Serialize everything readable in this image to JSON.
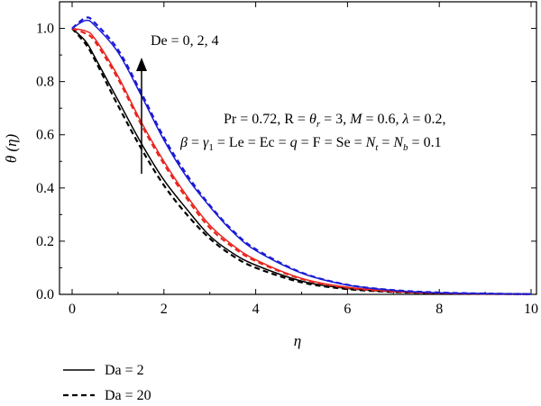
{
  "chart_data": {
    "type": "line",
    "xlabel": "η",
    "ylabel": "θ (η)",
    "xlim": [
      0,
      10
    ],
    "ylim": [
      0,
      1.1
    ],
    "xticks": [
      0,
      2,
      4,
      6,
      8,
      10
    ],
    "yticks": [
      0.0,
      0.2,
      0.4,
      0.6,
      0.8,
      1.0
    ],
    "xtick_labels": [
      "0",
      "2",
      "4",
      "6",
      "8",
      "10"
    ],
    "ytick_labels": [
      "0.0",
      "0.2",
      "0.4",
      "0.6",
      "0.8",
      "1.0"
    ],
    "grid": false,
    "colors": {
      "De0": "#000000",
      "De2": "#e8261f",
      "De4": "#1a1ad6"
    },
    "annotations": {
      "arrow_label": "De = 0, 2, 4",
      "params_line1": "Pr = 0.72, R = θr = 3, M = 0.6, λ = 0.2,",
      "params_line2": "β = γ1 = Le = Ec = q = F = Se = Nt = Nb = 0.1"
    },
    "legend": [
      {
        "label": "Da = 2",
        "style": "solid"
      },
      {
        "label": "Da = 20",
        "style": "dashed"
      }
    ],
    "x": [
      0,
      0.3,
      0.5,
      1,
      1.5,
      2,
      2.5,
      3,
      3.5,
      4,
      5,
      6,
      7,
      8,
      9,
      10
    ],
    "series": [
      {
        "color": "black",
        "style": "solid",
        "values": [
          1.0,
          0.95,
          0.89,
          0.73,
          0.57,
          0.43,
          0.32,
          0.22,
          0.155,
          0.11,
          0.05,
          0.022,
          0.01,
          0.004,
          0.002,
          0.001
        ]
      },
      {
        "color": "black",
        "style": "dashed",
        "values": [
          1.0,
          0.94,
          0.88,
          0.71,
          0.55,
          0.41,
          0.3,
          0.21,
          0.145,
          0.1,
          0.045,
          0.02,
          0.009,
          0.004,
          0.002,
          0.001
        ]
      },
      {
        "color": "red",
        "style": "solid",
        "values": [
          1.0,
          0.99,
          0.96,
          0.82,
          0.65,
          0.5,
          0.37,
          0.26,
          0.185,
          0.13,
          0.06,
          0.027,
          0.012,
          0.005,
          0.002,
          0.001
        ]
      },
      {
        "color": "red",
        "style": "dashed",
        "values": [
          1.0,
          0.98,
          0.95,
          0.81,
          0.64,
          0.49,
          0.36,
          0.25,
          0.178,
          0.125,
          0.058,
          0.025,
          0.011,
          0.005,
          0.002,
          0.001
        ]
      },
      {
        "color": "blue",
        "style": "solid",
        "values": [
          1.0,
          1.03,
          1.01,
          0.91,
          0.75,
          0.58,
          0.44,
          0.33,
          0.235,
          0.165,
          0.08,
          0.035,
          0.015,
          0.006,
          0.003,
          0.001
        ]
      },
      {
        "color": "blue",
        "style": "dashed",
        "values": [
          1.0,
          1.04,
          1.02,
          0.92,
          0.76,
          0.59,
          0.45,
          0.335,
          0.24,
          0.17,
          0.082,
          0.036,
          0.016,
          0.007,
          0.003,
          0.001
        ]
      }
    ]
  }
}
